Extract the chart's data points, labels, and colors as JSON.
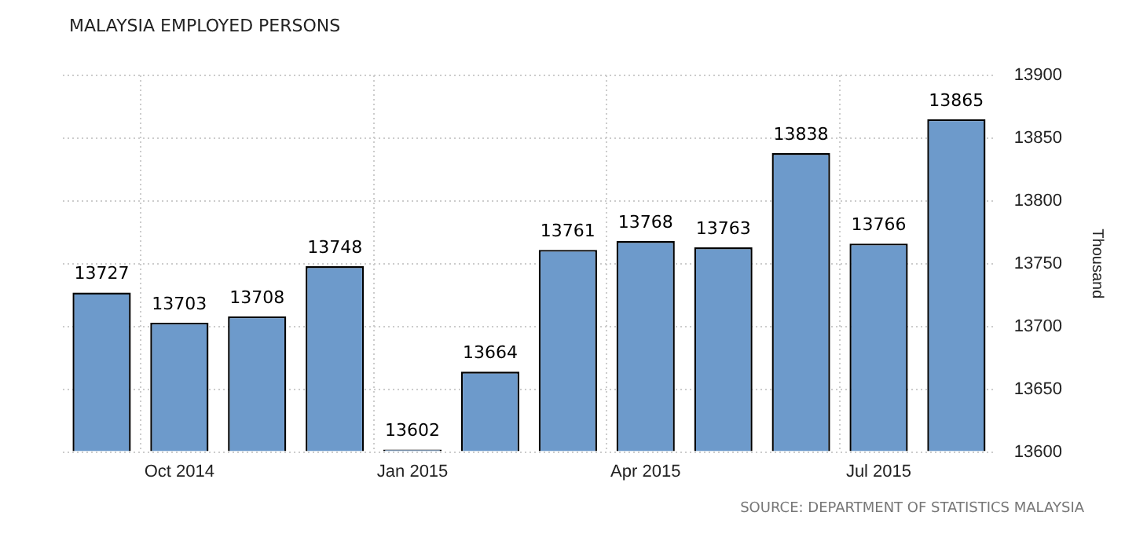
{
  "chart_data": {
    "type": "bar",
    "title": "MALAYSIA EMPLOYED PERSONS",
    "ylabel": "Thousand",
    "categories": [
      null,
      "Oct 2014",
      null,
      null,
      "Jan 2015",
      null,
      null,
      "Apr 2015",
      null,
      null,
      "Jul 2015",
      null
    ],
    "values": [
      13727,
      13703,
      13708,
      13748,
      13602,
      13664,
      13761,
      13768,
      13763,
      13838,
      13766,
      13865
    ],
    "color": "#6d9acb",
    "ylim": [
      13600,
      13900
    ],
    "yticks": [
      13600,
      13650,
      13700,
      13750,
      13800,
      13850,
      13900
    ],
    "grid": true,
    "data_labels": true,
    "legend": false,
    "annotations": [
      "SOURCE: DEPARTMENT OF STATISTICS MALAYSIA"
    ]
  }
}
